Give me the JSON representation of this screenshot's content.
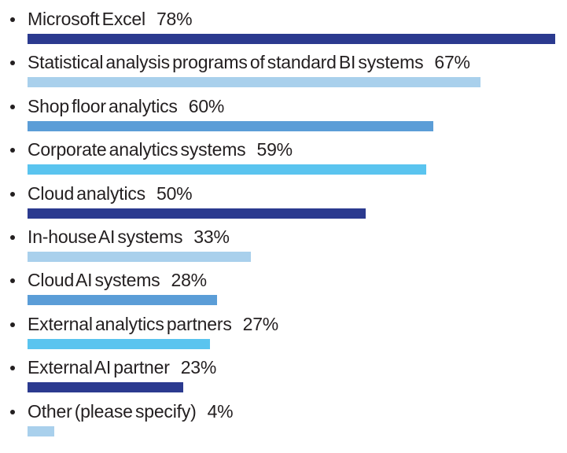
{
  "chart_data": {
    "type": "bar",
    "orientation": "horizontal",
    "title": "",
    "xlabel": "",
    "ylabel": "",
    "value_suffix": "%",
    "value_range": [
      0,
      100
    ],
    "grid": false,
    "legend": false,
    "categories": [
      "Microsoft Excel",
      "Statistical analysis programs of standard BI systems",
      "Shop floor analytics",
      "Corporate analytics systems",
      "Cloud analytics",
      "In-house AI systems",
      "Cloud AI systems",
      "External analytics partners",
      "External AI partner",
      "Other (please specify)"
    ],
    "values": [
      78,
      67,
      60,
      59,
      50,
      33,
      28,
      27,
      23,
      4
    ],
    "items": [
      {
        "label": "Microsoft Excel",
        "value": 78,
        "display_value": "78%",
        "color": "#2B3A8F"
      },
      {
        "label": "Statistical analysis programs of standard BI systems",
        "value": 67,
        "display_value": "67%",
        "color": "#A9D0EC"
      },
      {
        "label": "Shop floor analytics",
        "value": 60,
        "display_value": "60%",
        "color": "#5B9DD7"
      },
      {
        "label": "Corporate analytics systems",
        "value": 59,
        "display_value": "59%",
        "color": "#5AC4EF"
      },
      {
        "label": "Cloud analytics",
        "value": 50,
        "display_value": "50%",
        "color": "#2B3A8F"
      },
      {
        "label": "In-house AI systems",
        "value": 33,
        "display_value": "33%",
        "color": "#A9D0EC"
      },
      {
        "label": "Cloud AI systems",
        "value": 28,
        "display_value": "28%",
        "color": "#5B9DD7"
      },
      {
        "label": "External analytics partners",
        "value": 27,
        "display_value": "27%",
        "color": "#5AC4EF"
      },
      {
        "label": "External AI partner",
        "value": 23,
        "display_value": "23%",
        "color": "#2B3A8F"
      },
      {
        "label": "Other (please specify)",
        "value": 4,
        "display_value": "4%",
        "color": "#A9D0EC"
      }
    ]
  },
  "colors": {
    "background": "#FFFFFF",
    "text": "#231F20",
    "bullet": "#231F20",
    "palette": {
      "dark_navy": "#2B3A8F",
      "pale_blue": "#A9D0EC",
      "medium_blue": "#5B9DD7",
      "sky_cyan": "#5AC4EF"
    }
  }
}
